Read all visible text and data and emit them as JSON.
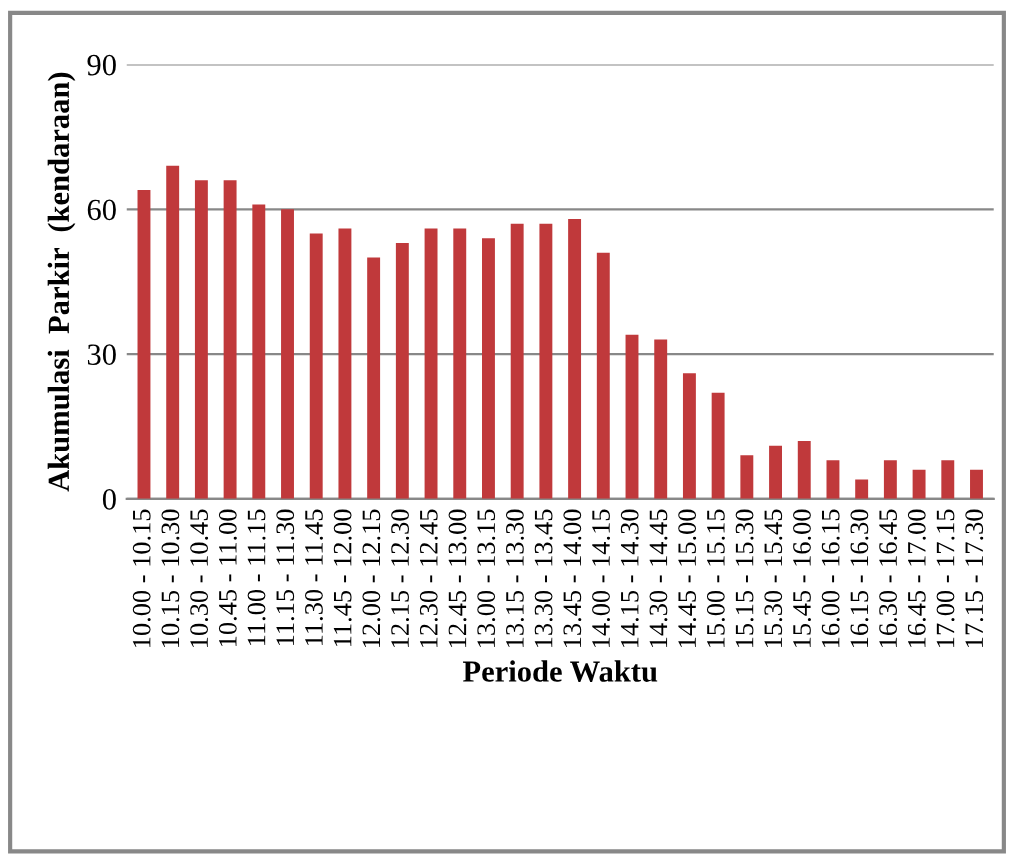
{
  "chart_data": {
    "type": "bar",
    "xlabel": "Periode Waktu",
    "ylabel": "Akumulasi  Parkir  (kendaraan)",
    "categories": [
      "10.00 - 10.15",
      "10.15 - 10.30",
      "10.30 - 10.45",
      "10.45 - 11.00",
      "11.00 - 11.15",
      "11.15 - 11.30",
      "11.30 - 11.45",
      "11.45 - 12.00",
      "12.00 - 12.15",
      "12.15 - 12.30",
      "12.30 - 12.45",
      "12.45 - 13.00",
      "13.00 - 13.15",
      "13.15 - 13.30",
      "13.30 - 13.45",
      "13.45 - 14.00",
      "14.00 - 14.15",
      "14.15 - 14.30",
      "14.30 - 14.45",
      "14.45 - 15.00",
      "15.00 - 15.15",
      "15.15 - 15.30",
      "15.30 - 15.45",
      "15.45 - 16.00",
      "16.00 - 16.15",
      "16.15 - 16.30",
      "16.30 - 16.45",
      "16.45 - 17.00",
      "17.00 - 17.15",
      "17.15 - 17.30"
    ],
    "values": [
      64,
      69,
      66,
      66,
      61,
      60,
      55,
      56,
      50,
      53,
      56,
      56,
      54,
      57,
      57,
      58,
      51,
      34,
      33,
      26,
      22,
      9,
      11,
      12,
      8,
      4,
      8,
      6,
      8,
      6
    ],
    "color": "#c0393b",
    "ylim": [
      0,
      90
    ],
    "yticks": [
      0,
      30,
      60,
      90
    ],
    "grid": "y",
    "legend": false
  }
}
